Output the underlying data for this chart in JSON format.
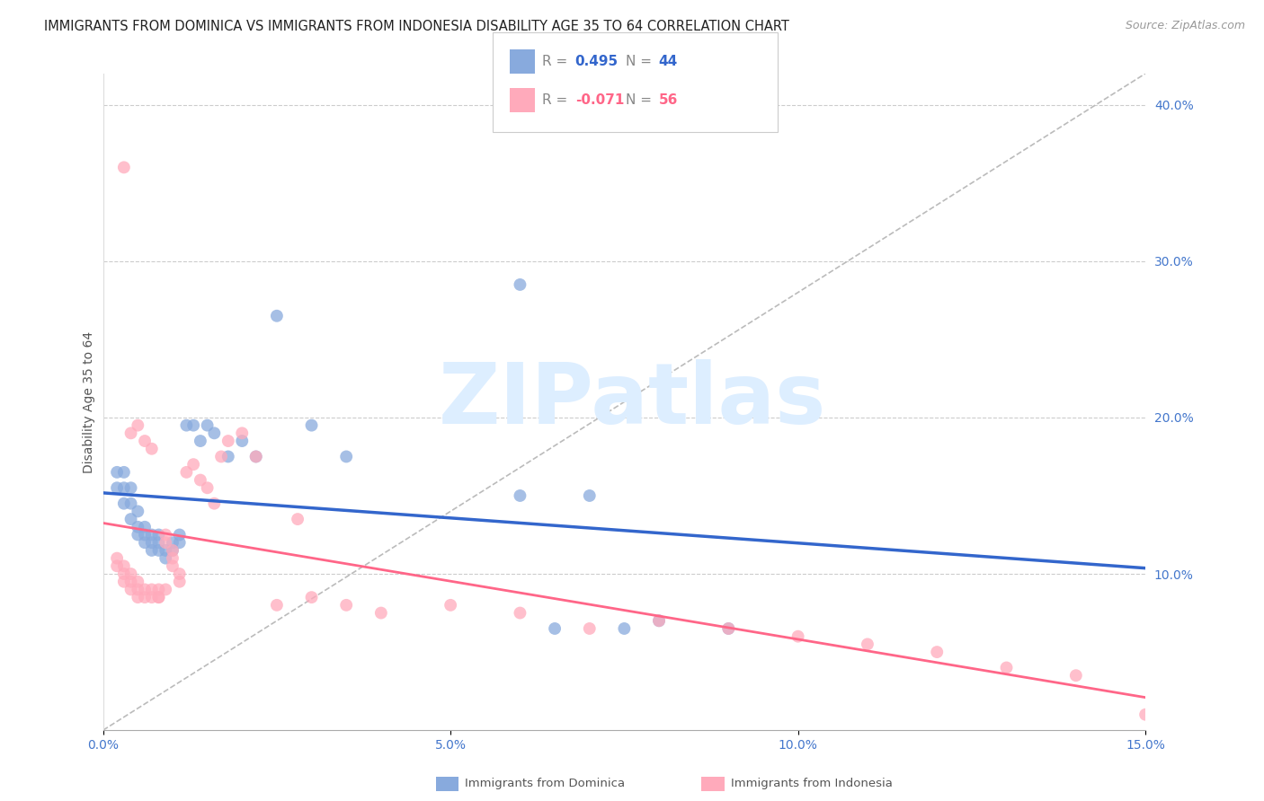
{
  "title": "IMMIGRANTS FROM DOMINICA VS IMMIGRANTS FROM INDONESIA DISABILITY AGE 35 TO 64 CORRELATION CHART",
  "source": "Source: ZipAtlas.com",
  "ylabel": "Disability Age 35 to 64",
  "xmin": 0.0,
  "xmax": 0.15,
  "ymin": 0.0,
  "ymax": 0.42,
  "right_yticks": [
    0.1,
    0.2,
    0.3,
    0.4
  ],
  "right_yticklabels": [
    "10.0%",
    "20.0%",
    "30.0%",
    "40.0%"
  ],
  "xticks": [
    0.0,
    0.05,
    0.1,
    0.15
  ],
  "xticklabels": [
    "0.0%",
    "5.0%",
    "10.0%",
    "15.0%"
  ],
  "grid_color": "#cccccc",
  "background_color": "#ffffff",
  "blue_color": "#88aadd",
  "pink_color": "#ffaabb",
  "blue_line_color": "#3366cc",
  "pink_line_color": "#ff6688",
  "watermark_color": "#ddeeff",
  "dominica_x": [
    0.002,
    0.002,
    0.003,
    0.003,
    0.003,
    0.004,
    0.004,
    0.004,
    0.005,
    0.005,
    0.005,
    0.006,
    0.006,
    0.006,
    0.007,
    0.007,
    0.007,
    0.008,
    0.008,
    0.008,
    0.009,
    0.009,
    0.01,
    0.01,
    0.011,
    0.011,
    0.012,
    0.013,
    0.014,
    0.015,
    0.016,
    0.018,
    0.02,
    0.022,
    0.025,
    0.03,
    0.035,
    0.06,
    0.06,
    0.065,
    0.07,
    0.075,
    0.08,
    0.09
  ],
  "dominica_y": [
    0.155,
    0.165,
    0.145,
    0.155,
    0.165,
    0.135,
    0.145,
    0.155,
    0.125,
    0.13,
    0.14,
    0.12,
    0.125,
    0.13,
    0.115,
    0.12,
    0.125,
    0.115,
    0.12,
    0.125,
    0.11,
    0.115,
    0.115,
    0.12,
    0.12,
    0.125,
    0.195,
    0.195,
    0.185,
    0.195,
    0.19,
    0.175,
    0.185,
    0.175,
    0.265,
    0.195,
    0.175,
    0.285,
    0.15,
    0.065,
    0.15,
    0.065,
    0.07,
    0.065
  ],
  "indonesia_x": [
    0.002,
    0.002,
    0.003,
    0.003,
    0.003,
    0.004,
    0.004,
    0.004,
    0.005,
    0.005,
    0.005,
    0.006,
    0.006,
    0.007,
    0.007,
    0.008,
    0.008,
    0.009,
    0.009,
    0.01,
    0.01,
    0.011,
    0.012,
    0.013,
    0.014,
    0.015,
    0.016,
    0.017,
    0.018,
    0.02,
    0.022,
    0.025,
    0.028,
    0.03,
    0.035,
    0.04,
    0.05,
    0.06,
    0.07,
    0.08,
    0.09,
    0.1,
    0.11,
    0.12,
    0.13,
    0.14,
    0.15,
    0.003,
    0.004,
    0.005,
    0.006,
    0.007,
    0.008,
    0.009,
    0.01,
    0.011
  ],
  "indonesia_y": [
    0.105,
    0.11,
    0.095,
    0.1,
    0.105,
    0.09,
    0.095,
    0.1,
    0.085,
    0.09,
    0.095,
    0.085,
    0.09,
    0.085,
    0.09,
    0.085,
    0.09,
    0.12,
    0.125,
    0.11,
    0.115,
    0.1,
    0.165,
    0.17,
    0.16,
    0.155,
    0.145,
    0.175,
    0.185,
    0.19,
    0.175,
    0.08,
    0.135,
    0.085,
    0.08,
    0.075,
    0.08,
    0.075,
    0.065,
    0.07,
    0.065,
    0.06,
    0.055,
    0.05,
    0.04,
    0.035,
    0.01,
    0.36,
    0.19,
    0.195,
    0.185,
    0.18,
    0.085,
    0.09,
    0.105,
    0.095
  ],
  "title_fontsize": 10.5,
  "axis_label_fontsize": 10,
  "tick_fontsize": 10,
  "legend_fontsize": 11,
  "source_fontsize": 9
}
